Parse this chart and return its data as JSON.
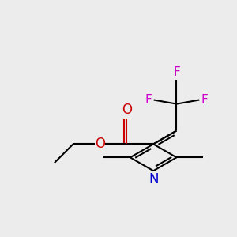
{
  "background_color": "#ececec",
  "bond_color": "#000000",
  "nitrogen_color": "#0000cc",
  "oxygen_color": "#cc0000",
  "fluorine_color": "#cc00cc",
  "line_width": 1.5,
  "figsize": [
    3.0,
    3.0
  ],
  "dpi": 100,
  "xlim": [
    0,
    10
  ],
  "ylim": [
    0,
    10
  ],
  "font_size": 11
}
